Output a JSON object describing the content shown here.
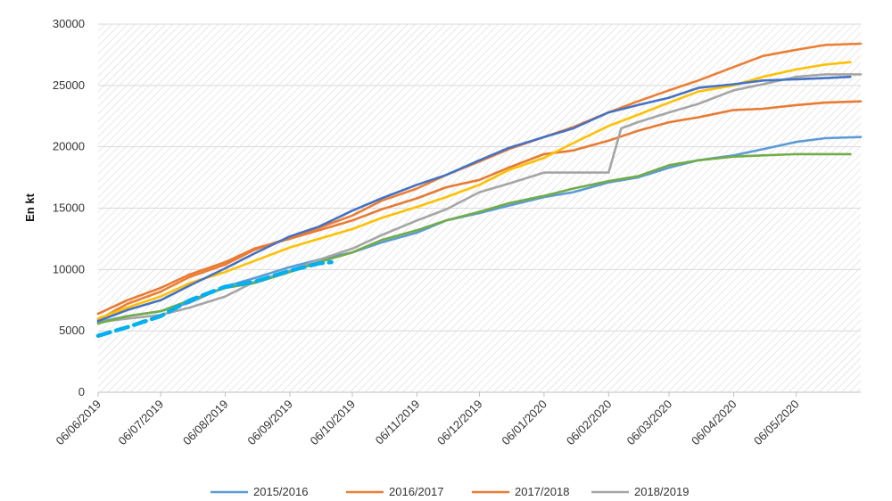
{
  "chart_data": {
    "type": "line",
    "ylabel": "En kt",
    "ylim": [
      0,
      30000
    ],
    "y_ticks": [
      "0",
      "5000",
      "10000",
      "15000",
      "20000",
      "25000",
      "30000"
    ],
    "x_ticks": [
      "06/06/2019",
      "06/07/2019",
      "06/08/2019",
      "06/09/2019",
      "06/10/2019",
      "06/11/2019",
      "06/12/2019",
      "06/01/2020",
      "06/02/2020",
      "06/03/2020",
      "06/04/2020",
      "06/05/2020"
    ],
    "xlim": [
      "2019-06-06",
      "2020-06-06"
    ],
    "grid": "hatched-background",
    "legend_position": "bottom",
    "legend_entries": [
      "2015/2016",
      "2016/2017",
      "2017/2018",
      "2018/2019"
    ],
    "series": [
      {
        "name": "2015/2016",
        "color": "#5b9bd5",
        "points": [
          [
            "2019-06-06",
            5700
          ],
          [
            "2019-06-20",
            6200
          ],
          [
            "2019-07-06",
            6600
          ],
          [
            "2019-07-20",
            7300
          ],
          [
            "2019-08-06",
            8600
          ],
          [
            "2019-08-20",
            9300
          ],
          [
            "2019-09-06",
            10200
          ],
          [
            "2019-09-20",
            10800
          ],
          [
            "2019-10-06",
            11400
          ],
          [
            "2019-10-20",
            12200
          ],
          [
            "2019-11-06",
            13000
          ],
          [
            "2019-11-20",
            14000
          ],
          [
            "2019-12-06",
            14600
          ],
          [
            "2019-12-20",
            15200
          ],
          [
            "2020-01-06",
            15900
          ],
          [
            "2020-01-20",
            16300
          ],
          [
            "2020-02-06",
            17100
          ],
          [
            "2020-02-20",
            17500
          ],
          [
            "2020-03-06",
            18300
          ],
          [
            "2020-03-20",
            18900
          ],
          [
            "2020-04-06",
            19300
          ],
          [
            "2020-04-20",
            19800
          ],
          [
            "2020-05-06",
            20400
          ],
          [
            "2020-05-20",
            20700
          ],
          [
            "2020-06-06",
            20800
          ]
        ]
      },
      {
        "name": "2016/2017",
        "color": "#ed7d31",
        "points": [
          [
            "2019-06-06",
            5900
          ],
          [
            "2019-06-20",
            7200
          ],
          [
            "2019-07-06",
            8200
          ],
          [
            "2019-07-20",
            9400
          ],
          [
            "2019-08-06",
            10400
          ],
          [
            "2019-08-20",
            11600
          ],
          [
            "2019-09-06",
            12600
          ],
          [
            "2019-09-20",
            13400
          ],
          [
            "2019-10-06",
            14400
          ],
          [
            "2019-10-20",
            15600
          ],
          [
            "2019-11-06",
            16600
          ],
          [
            "2019-11-20",
            17700
          ],
          [
            "2019-12-06",
            18800
          ],
          [
            "2019-12-20",
            19800
          ],
          [
            "2020-01-06",
            20800
          ],
          [
            "2020-01-20",
            21600
          ],
          [
            "2020-02-06",
            22800
          ],
          [
            "2020-02-20",
            23700
          ],
          [
            "2020-03-06",
            24600
          ],
          [
            "2020-03-20",
            25400
          ],
          [
            "2020-04-06",
            26500
          ],
          [
            "2020-04-20",
            27400
          ],
          [
            "2020-05-06",
            27900
          ],
          [
            "2020-05-20",
            28300
          ],
          [
            "2020-06-06",
            28400
          ]
        ]
      },
      {
        "name": "2017/2018",
        "color": "#e87a31",
        "points": [
          [
            "2019-06-06",
            6400
          ],
          [
            "2019-06-20",
            7500
          ],
          [
            "2019-07-06",
            8500
          ],
          [
            "2019-07-20",
            9600
          ],
          [
            "2019-08-06",
            10600
          ],
          [
            "2019-08-20",
            11700
          ],
          [
            "2019-09-06",
            12500
          ],
          [
            "2019-09-20",
            13200
          ],
          [
            "2019-10-06",
            14000
          ],
          [
            "2019-10-20",
            14900
          ],
          [
            "2019-11-06",
            15800
          ],
          [
            "2019-11-20",
            16700
          ],
          [
            "2019-12-06",
            17300
          ],
          [
            "2019-12-20",
            18300
          ],
          [
            "2020-01-06",
            19400
          ],
          [
            "2020-01-20",
            19700
          ],
          [
            "2020-02-06",
            20500
          ],
          [
            "2020-02-20",
            21300
          ],
          [
            "2020-03-06",
            22000
          ],
          [
            "2020-03-20",
            22400
          ],
          [
            "2020-04-06",
            23000
          ],
          [
            "2020-04-20",
            23100
          ],
          [
            "2020-05-06",
            23400
          ],
          [
            "2020-05-20",
            23600
          ],
          [
            "2020-06-06",
            23700
          ]
        ]
      },
      {
        "name": "2018/2019",
        "color": "#a5a5a5",
        "points": [
          [
            "2019-06-06",
            5700
          ],
          [
            "2019-06-20",
            6000
          ],
          [
            "2019-07-06",
            6300
          ],
          [
            "2019-07-20",
            6900
          ],
          [
            "2019-08-06",
            7800
          ],
          [
            "2019-08-20",
            9000
          ],
          [
            "2019-09-06",
            9900
          ],
          [
            "2019-09-20",
            10800
          ],
          [
            "2019-10-06",
            11700
          ],
          [
            "2019-10-20",
            12800
          ],
          [
            "2019-11-06",
            14000
          ],
          [
            "2019-11-20",
            14900
          ],
          [
            "2019-12-06",
            16300
          ],
          [
            "2019-12-20",
            17000
          ],
          [
            "2020-01-06",
            17900
          ],
          [
            "2020-01-20",
            17900
          ],
          [
            "2020-02-06",
            17900
          ],
          [
            "2020-02-12",
            21500
          ],
          [
            "2020-02-20",
            22000
          ],
          [
            "2020-03-06",
            22800
          ],
          [
            "2020-03-20",
            23500
          ],
          [
            "2020-04-06",
            24600
          ],
          [
            "2020-04-20",
            25100
          ],
          [
            "2020-05-06",
            25700
          ],
          [
            "2020-05-20",
            25900
          ],
          [
            "2020-06-06",
            25900
          ]
        ]
      },
      {
        "name": "",
        "color": "#ffc000",
        "points": [
          [
            "2019-06-06",
            6000
          ],
          [
            "2019-06-20",
            6900
          ],
          [
            "2019-07-06",
            7800
          ],
          [
            "2019-07-20",
            8900
          ],
          [
            "2019-08-06",
            9800
          ],
          [
            "2019-08-20",
            10700
          ],
          [
            "2019-09-06",
            11800
          ],
          [
            "2019-09-20",
            12500
          ],
          [
            "2019-10-06",
            13300
          ],
          [
            "2019-10-20",
            14200
          ],
          [
            "2019-11-06",
            15100
          ],
          [
            "2019-11-20",
            15900
          ],
          [
            "2019-12-06",
            16900
          ],
          [
            "2019-12-20",
            18100
          ],
          [
            "2020-01-06",
            19100
          ],
          [
            "2020-01-20",
            20300
          ],
          [
            "2020-02-06",
            21700
          ],
          [
            "2020-02-20",
            22600
          ],
          [
            "2020-03-06",
            23600
          ],
          [
            "2020-03-20",
            24500
          ],
          [
            "2020-04-06",
            25000
          ],
          [
            "2020-04-20",
            25700
          ],
          [
            "2020-05-06",
            26300
          ],
          [
            "2020-05-20",
            26700
          ],
          [
            "2020-06-01",
            26900
          ]
        ]
      },
      {
        "name": "",
        "color": "#4472c4",
        "points": [
          [
            "2019-06-06",
            5800
          ],
          [
            "2019-06-20",
            6700
          ],
          [
            "2019-07-06",
            7500
          ],
          [
            "2019-07-20",
            8700
          ],
          [
            "2019-08-06",
            10100
          ],
          [
            "2019-08-20",
            11300
          ],
          [
            "2019-09-06",
            12700
          ],
          [
            "2019-09-20",
            13500
          ],
          [
            "2019-10-06",
            14800
          ],
          [
            "2019-10-20",
            15800
          ],
          [
            "2019-11-06",
            16900
          ],
          [
            "2019-11-20",
            17700
          ],
          [
            "2019-12-06",
            18900
          ],
          [
            "2019-12-20",
            19900
          ],
          [
            "2020-01-06",
            20800
          ],
          [
            "2020-01-20",
            21500
          ],
          [
            "2020-02-06",
            22800
          ],
          [
            "2020-02-20",
            23400
          ],
          [
            "2020-03-06",
            24000
          ],
          [
            "2020-03-20",
            24800
          ],
          [
            "2020-04-06",
            25100
          ],
          [
            "2020-04-20",
            25400
          ],
          [
            "2020-05-06",
            25500
          ],
          [
            "2020-05-20",
            25600
          ],
          [
            "2020-06-01",
            25700
          ]
        ]
      },
      {
        "name": "",
        "color": "#70ad47",
        "points": [
          [
            "2019-06-06",
            5600
          ],
          [
            "2019-06-20",
            6200
          ],
          [
            "2019-07-06",
            6600
          ],
          [
            "2019-07-20",
            7500
          ],
          [
            "2019-08-06",
            8500
          ],
          [
            "2019-08-20",
            8900
          ],
          [
            "2019-09-06",
            9800
          ],
          [
            "2019-09-20",
            10600
          ],
          [
            "2019-10-06",
            11400
          ],
          [
            "2019-10-20",
            12400
          ],
          [
            "2019-11-06",
            13200
          ],
          [
            "2019-11-20",
            14000
          ],
          [
            "2019-12-06",
            14700
          ],
          [
            "2019-12-20",
            15400
          ],
          [
            "2020-01-06",
            16000
          ],
          [
            "2020-01-20",
            16600
          ],
          [
            "2020-02-06",
            17200
          ],
          [
            "2020-02-20",
            17600
          ],
          [
            "2020-03-06",
            18500
          ],
          [
            "2020-03-20",
            18900
          ],
          [
            "2020-04-06",
            19200
          ],
          [
            "2020-04-20",
            19300
          ],
          [
            "2020-05-06",
            19400
          ],
          [
            "2020-05-20",
            19400
          ],
          [
            "2020-06-01",
            19400
          ]
        ]
      },
      {
        "name": "",
        "color": "#00b0f0",
        "dashed": true,
        "points": [
          [
            "2019-06-06",
            4600
          ],
          [
            "2019-06-20",
            5300
          ],
          [
            "2019-07-06",
            6200
          ],
          [
            "2019-07-20",
            7500
          ],
          [
            "2019-08-06",
            8600
          ],
          [
            "2019-08-20",
            9000
          ],
          [
            "2019-09-06",
            9900
          ],
          [
            "2019-09-20",
            10500
          ],
          [
            "2019-09-26",
            10600
          ]
        ]
      }
    ]
  }
}
